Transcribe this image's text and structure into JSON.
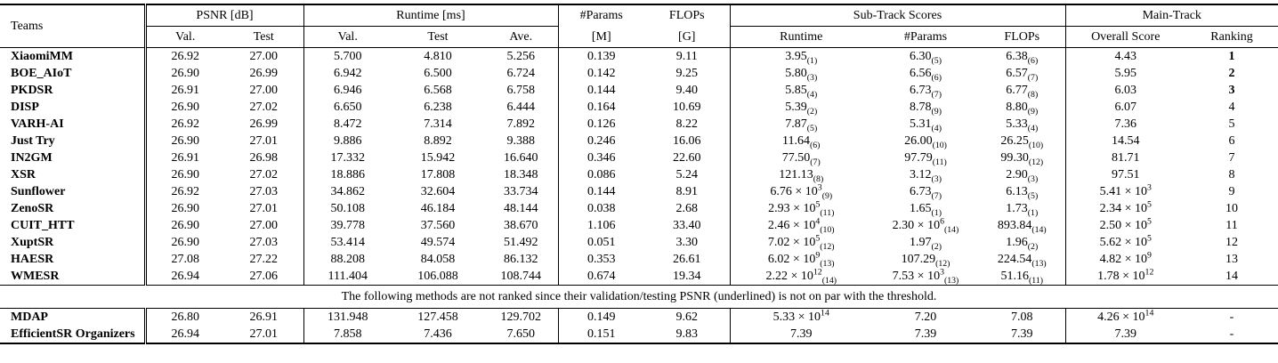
{
  "table": {
    "headers": {
      "teams": "Teams",
      "groups": {
        "psnr": "PSNR [dB]",
        "runtime": "Runtime [ms]",
        "params_line1": "#Params",
        "params_line2": "[M]",
        "flops_line1": "FLOPs",
        "flops_line2": "[G]",
        "subtrack": "Sub-Track Scores",
        "maintrack": "Main-Track"
      },
      "sub": {
        "psnr_val": "Val.",
        "psnr_test": "Test",
        "rt_val": "Val.",
        "rt_test": "Test",
        "rt_ave": "Ave.",
        "st_runtime": "Runtime",
        "st_params": "#Params",
        "st_flops": "FLOPs",
        "overall": "Overall Score",
        "ranking": "Ranking"
      }
    },
    "note": "The following methods are not ranked since their validation/testing PSNR (underlined) is not on par with the threshold.",
    "rows": [
      {
        "team": "XiaomiMM",
        "psnr_val": "26.92",
        "psnr_test": "27.00",
        "rt_val": "5.700",
        "rt_test": "4.810",
        "rt_ave": "5.256",
        "params": "0.139",
        "flops": "9.11",
        "st_runtime": {
          "v": "3.95",
          "r": "1"
        },
        "st_params": {
          "v": "6.30",
          "r": "5"
        },
        "st_flops": {
          "v": "6.38",
          "r": "6"
        },
        "overall": {
          "v": "4.43"
        },
        "ranking": "1",
        "rank_bold": true
      },
      {
        "team": "BOE_AIoT",
        "psnr_val": "26.90",
        "psnr_test": "26.99",
        "rt_val": "6.942",
        "rt_test": "6.500",
        "rt_ave": "6.724",
        "params": "0.142",
        "flops": "9.25",
        "st_runtime": {
          "v": "5.80",
          "r": "3"
        },
        "st_params": {
          "v": "6.56",
          "r": "6"
        },
        "st_flops": {
          "v": "6.57",
          "r": "7"
        },
        "overall": {
          "v": "5.95"
        },
        "ranking": "2",
        "rank_bold": true
      },
      {
        "team": "PKDSR",
        "psnr_val": "26.91",
        "psnr_test": "27.00",
        "rt_val": "6.946",
        "rt_test": "6.568",
        "rt_ave": "6.758",
        "params": "0.144",
        "flops": "9.40",
        "st_runtime": {
          "v": "5.85",
          "r": "4"
        },
        "st_params": {
          "v": "6.73",
          "r": "7"
        },
        "st_flops": {
          "v": "6.77",
          "r": "8"
        },
        "overall": {
          "v": "6.03"
        },
        "ranking": "3",
        "rank_bold": true
      },
      {
        "team": "DISP",
        "psnr_val": "26.90",
        "psnr_test": "27.02",
        "rt_val": "6.650",
        "rt_test": "6.238",
        "rt_ave": "6.444",
        "params": "0.164",
        "flops": "10.69",
        "st_runtime": {
          "v": "5.39",
          "r": "2"
        },
        "st_params": {
          "v": "8.78",
          "r": "9"
        },
        "st_flops": {
          "v": "8.80",
          "r": "9"
        },
        "overall": {
          "v": "6.07"
        },
        "ranking": "4",
        "rank_bold": false
      },
      {
        "team": "VARH-AI",
        "psnr_val": "26.92",
        "psnr_test": "26.99",
        "rt_val": "8.472",
        "rt_test": "7.314",
        "rt_ave": "7.892",
        "params": "0.126",
        "flops": "8.22",
        "st_runtime": {
          "v": "7.87",
          "r": "5"
        },
        "st_params": {
          "v": "5.31",
          "r": "4"
        },
        "st_flops": {
          "v": "5.33",
          "r": "4"
        },
        "overall": {
          "v": "7.36"
        },
        "ranking": "5",
        "rank_bold": false
      },
      {
        "team": "Just Try",
        "psnr_val": "26.90",
        "psnr_test": "27.01",
        "rt_val": "9.886",
        "rt_test": "8.892",
        "rt_ave": "9.388",
        "params": "0.246",
        "flops": "16.06",
        "st_runtime": {
          "v": "11.64",
          "r": "6"
        },
        "st_params": {
          "v": "26.00",
          "r": "10"
        },
        "st_flops": {
          "v": "26.25",
          "r": "10"
        },
        "overall": {
          "v": "14.54"
        },
        "ranking": "6",
        "rank_bold": false
      },
      {
        "team": "IN2GM",
        "psnr_val": "26.91",
        "psnr_test": "26.98",
        "rt_val": "17.332",
        "rt_test": "15.942",
        "rt_ave": "16.640",
        "params": "0.346",
        "flops": "22.60",
        "st_runtime": {
          "v": "77.50",
          "r": "7"
        },
        "st_params": {
          "v": "97.79",
          "r": "11"
        },
        "st_flops": {
          "v": "99.30",
          "r": "12"
        },
        "overall": {
          "v": "81.71"
        },
        "ranking": "7",
        "rank_bold": false
      },
      {
        "team": "XSR",
        "psnr_val": "26.90",
        "psnr_test": "27.02",
        "rt_val": "18.886",
        "rt_test": "17.808",
        "rt_ave": "18.348",
        "params": "0.086",
        "flops": "5.24",
        "st_runtime": {
          "v": "121.13",
          "r": "8"
        },
        "st_params": {
          "v": "3.12",
          "r": "3"
        },
        "st_flops": {
          "v": "2.90",
          "r": "3"
        },
        "overall": {
          "v": "97.51"
        },
        "ranking": "8",
        "rank_bold": false
      },
      {
        "team": "Sunflower",
        "psnr_val": "26.92",
        "psnr_test": "27.03",
        "rt_val": "34.862",
        "rt_test": "32.604",
        "rt_ave": "33.734",
        "params": "0.144",
        "flops": "8.91",
        "st_runtime": {
          "v": "6.76",
          "e": "3",
          "r": "9"
        },
        "st_params": {
          "v": "6.73",
          "r": "7"
        },
        "st_flops": {
          "v": "6.13",
          "r": "5"
        },
        "overall": {
          "v": "5.41",
          "e": "3"
        },
        "ranking": "9",
        "rank_bold": false
      },
      {
        "team": "ZenoSR",
        "psnr_val": "26.90",
        "psnr_test": "27.01",
        "rt_val": "50.108",
        "rt_test": "46.184",
        "rt_ave": "48.144",
        "params": "0.038",
        "flops": "2.68",
        "st_runtime": {
          "v": "2.93",
          "e": "5",
          "r": "11"
        },
        "st_params": {
          "v": "1.65",
          "r": "1"
        },
        "st_flops": {
          "v": "1.73",
          "r": "1"
        },
        "overall": {
          "v": "2.34",
          "e": "5"
        },
        "ranking": "10",
        "rank_bold": false
      },
      {
        "team": "CUIT_HTT",
        "psnr_val": "26.90",
        "psnr_test": "27.00",
        "rt_val": "39.778",
        "rt_test": "37.560",
        "rt_ave": "38.670",
        "params": "1.106",
        "flops": "33.40",
        "st_runtime": {
          "v": "2.46",
          "e": "4",
          "r": "10"
        },
        "st_params": {
          "v": "2.30",
          "e": "6",
          "r": "14"
        },
        "st_flops": {
          "v": "893.84",
          "r": "14"
        },
        "overall": {
          "v": "2.50",
          "e": "5"
        },
        "ranking": "11",
        "rank_bold": false
      },
      {
        "team": "XuptSR",
        "psnr_val": "26.90",
        "psnr_test": "27.03",
        "rt_val": "53.414",
        "rt_test": "49.574",
        "rt_ave": "51.492",
        "params": "0.051",
        "flops": "3.30",
        "st_runtime": {
          "v": "7.02",
          "e": "5",
          "r": "12"
        },
        "st_params": {
          "v": "1.97",
          "r": "2"
        },
        "st_flops": {
          "v": "1.96",
          "r": "2"
        },
        "overall": {
          "v": "5.62",
          "e": "5"
        },
        "ranking": "12",
        "rank_bold": false
      },
      {
        "team": "HAESR",
        "psnr_val": "27.08",
        "psnr_test": "27.22",
        "rt_val": "88.208",
        "rt_test": "84.058",
        "rt_ave": "86.132",
        "params": "0.353",
        "flops": "26.61",
        "st_runtime": {
          "v": "6.02",
          "e": "9",
          "r": "13"
        },
        "st_params": {
          "v": "107.29",
          "r": "12"
        },
        "st_flops": {
          "v": "224.54",
          "r": "13"
        },
        "overall": {
          "v": "4.82",
          "e": "9"
        },
        "ranking": "13",
        "rank_bold": false
      },
      {
        "team": "WMESR",
        "psnr_val": "26.94",
        "psnr_test": "27.06",
        "rt_val": "111.404",
        "rt_test": "106.088",
        "rt_ave": "108.744",
        "params": "0.674",
        "flops": "19.34",
        "st_runtime": {
          "v": "2.22",
          "e": "12",
          "r": "14"
        },
        "st_params": {
          "v": "7.53",
          "e": "3",
          "r": "13"
        },
        "st_flops": {
          "v": "51.16",
          "r": "11"
        },
        "overall": {
          "v": "1.78",
          "e": "12"
        },
        "ranking": "14",
        "rank_bold": false
      }
    ],
    "unranked_rows": [
      {
        "team": "MDAP",
        "psnr_val": "26.80",
        "psnr_test": "26.91",
        "rt_val": "131.948",
        "rt_test": "127.458",
        "rt_ave": "129.702",
        "params": "0.149",
        "flops": "9.62",
        "st_runtime": {
          "v": "5.33",
          "e": "14"
        },
        "st_params": {
          "v": "7.20"
        },
        "st_flops": {
          "v": "7.08"
        },
        "overall": {
          "v": "4.26",
          "e": "14"
        },
        "ranking": "-",
        "rank_bold": false
      },
      {
        "team": "EfficientSR Organizers",
        "psnr_val": "26.94",
        "psnr_test": "27.01",
        "rt_val": "7.858",
        "rt_test": "7.436",
        "rt_ave": "7.650",
        "params": "0.151",
        "flops": "9.83",
        "st_runtime": {
          "v": "7.39"
        },
        "st_params": {
          "v": "7.39"
        },
        "st_flops": {
          "v": "7.39"
        },
        "overall": {
          "v": "7.39"
        },
        "ranking": "-",
        "rank_bold": false
      }
    ]
  }
}
